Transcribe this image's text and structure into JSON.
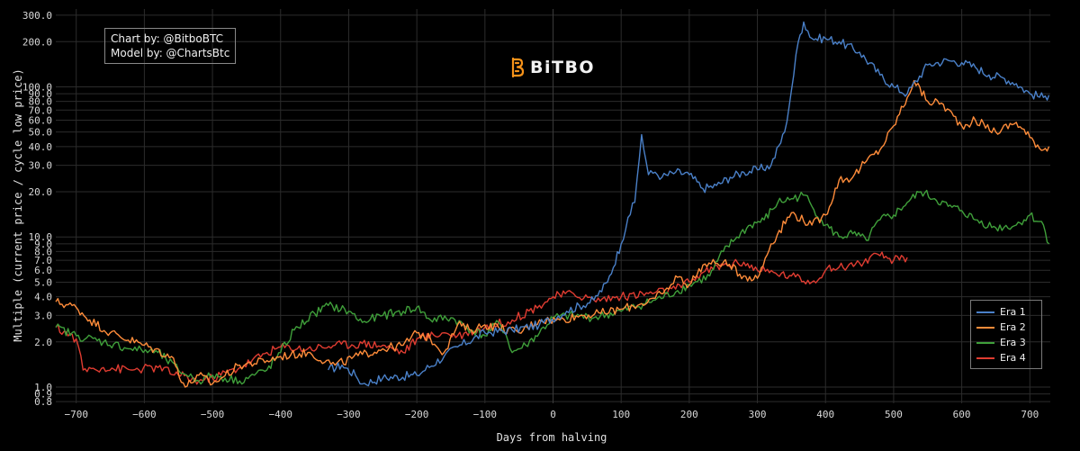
{
  "credits": {
    "chart_by": "Chart by: @BitboBTC",
    "model_by": "Model by: @ChartsBtc"
  },
  "logo": {
    "text": "BiTBO",
    "icon": "bitbo-logo-icon",
    "color": "#f7931a"
  },
  "chart_data": {
    "type": "line",
    "xlabel": "Days from halving",
    "ylabel": "Multiple (current price / cycle low price)",
    "xlim": [
      -730,
      730
    ],
    "ylim": [
      0.78,
      330
    ],
    "y_scale": "log",
    "grid": true,
    "legend_position": "bottom-right",
    "x_ticks": [
      -700,
      -600,
      -500,
      -400,
      -300,
      -200,
      -100,
      0,
      100,
      200,
      300,
      400,
      500,
      600,
      700
    ],
    "x_tick_labels": [
      "−700",
      "−600",
      "−500",
      "−400",
      "−300",
      "−200",
      "−100",
      "0",
      "100",
      "200",
      "300",
      "400",
      "500",
      "600",
      "700"
    ],
    "y_ticks": [
      0.8,
      0.9,
      1,
      2,
      3,
      4,
      5,
      6,
      7,
      8,
      9,
      10,
      20,
      30,
      40,
      50,
      60,
      70,
      80,
      90,
      100,
      200,
      300
    ],
    "y_tick_labels": [
      "0.8",
      "0.9",
      "1.0",
      "2.0",
      "3.0",
      "4.0",
      "5.0",
      "6.0",
      "7.0",
      "8.0",
      "9.0",
      "10.0",
      "20.0",
      "30.0",
      "40.0",
      "50.0",
      "60.0",
      "70.0",
      "80.0",
      "90.0",
      "100.0",
      "200.0",
      "300.0"
    ],
    "series": [
      {
        "name": "Era 1",
        "color": "#4a80c8",
        "x": [
          -330,
          -310,
          -290,
          -280,
          -250,
          -200,
          -160,
          -140,
          -100,
          -60,
          -20,
          20,
          60,
          80,
          100,
          110,
          120,
          130,
          140,
          150,
          160,
          180,
          200,
          220,
          240,
          260,
          280,
          300,
          320,
          340,
          350,
          360,
          368,
          380,
          400,
          420,
          450,
          480,
          500,
          520,
          550,
          580,
          600,
          620,
          640,
          660,
          680,
          700,
          720,
          728
        ],
        "y": [
          1.3,
          1.4,
          1.2,
          1.05,
          1.15,
          1.2,
          1.6,
          1.85,
          2.3,
          2.4,
          2.6,
          3.2,
          3.8,
          5.0,
          9.0,
          13.5,
          17.0,
          48.0,
          26.0,
          27.0,
          25.0,
          27.0,
          26.0,
          21.0,
          22.0,
          25.0,
          27.0,
          28.0,
          30.0,
          50.0,
          95.0,
          200.0,
          270.0,
          210.0,
          210.0,
          200.0,
          170.0,
          120.0,
          100.0,
          90.0,
          140.0,
          150.0,
          145.0,
          135.0,
          120.0,
          115.0,
          105.0,
          90.0,
          85.0,
          88.0
        ]
      },
      {
        "name": "Era 2",
        "color": "#ff8c3a",
        "x": [
          -730,
          -700,
          -680,
          -650,
          -600,
          -560,
          -540,
          -520,
          -500,
          -460,
          -420,
          -400,
          -360,
          -320,
          -280,
          -250,
          -220,
          -200,
          -180,
          -160,
          -140,
          -120,
          -100,
          -80,
          -50,
          -20,
          10,
          40,
          70,
          100,
          130,
          150,
          170,
          180,
          200,
          220,
          250,
          280,
          300,
          320,
          350,
          380,
          400,
          420,
          440,
          460,
          480,
          500,
          520,
          530,
          550,
          570,
          600,
          620,
          650,
          680,
          700,
          720,
          728
        ],
        "y": [
          3.7,
          3.4,
          2.8,
          2.3,
          1.9,
          1.6,
          1.0,
          1.2,
          1.05,
          1.4,
          1.5,
          1.6,
          1.7,
          1.4,
          1.65,
          1.8,
          1.9,
          2.3,
          2.1,
          1.7,
          2.6,
          2.4,
          2.6,
          2.5,
          2.3,
          2.8,
          2.8,
          3.0,
          3.1,
          3.3,
          3.6,
          3.9,
          4.5,
          5.5,
          4.8,
          6.5,
          6.8,
          5.5,
          5.3,
          9.0,
          14.5,
          12.0,
          14.0,
          24.0,
          25.0,
          32.0,
          38.0,
          55.0,
          85.0,
          110.0,
          80.0,
          78.0,
          55.0,
          60.0,
          50.0,
          58.0,
          46.0,
          38.0,
          40.0
        ]
      },
      {
        "name": "Era 3",
        "color": "#3f9f3a",
        "x": [
          -730,
          -700,
          -660,
          -620,
          -580,
          -550,
          -520,
          -500,
          -460,
          -420,
          -400,
          -380,
          -350,
          -330,
          -300,
          -280,
          -250,
          -220,
          -200,
          -180,
          -150,
          -120,
          -100,
          -80,
          -70,
          -60,
          -40,
          -20,
          0,
          30,
          60,
          100,
          150,
          180,
          200,
          230,
          250,
          270,
          290,
          310,
          330,
          350,
          370,
          380,
          400,
          420,
          440,
          460,
          480,
          500,
          520,
          540,
          560,
          580,
          600,
          620,
          650,
          680,
          700,
          720,
          728
        ],
        "y": [
          2.5,
          2.2,
          2.0,
          1.8,
          1.7,
          1.3,
          1.1,
          1.2,
          1.1,
          1.3,
          1.7,
          2.4,
          3.1,
          3.5,
          3.2,
          2.7,
          3.0,
          3.2,
          3.4,
          2.8,
          2.9,
          2.4,
          2.2,
          2.7,
          2.3,
          1.7,
          1.9,
          2.3,
          2.9,
          3.0,
          2.9,
          3.2,
          3.8,
          4.3,
          4.8,
          5.5,
          8.0,
          10.0,
          12.0,
          13.0,
          17.0,
          18.0,
          19.0,
          16.0,
          12.0,
          10.0,
          10.5,
          9.5,
          13.0,
          14.0,
          17.0,
          20.0,
          18.0,
          16.0,
          15.0,
          13.0,
          11.5,
          12.0,
          14.0,
          12.0,
          9.0
        ]
      },
      {
        "name": "Era 4",
        "color": "#e03c31",
        "x": [
          -730,
          -700,
          -690,
          -660,
          -620,
          -580,
          -550,
          -520,
          -500,
          -460,
          -420,
          -400,
          -360,
          -320,
          -280,
          -250,
          -220,
          -200,
          -160,
          -140,
          -100,
          -60,
          -20,
          0,
          30,
          60,
          100,
          140,
          180,
          200,
          220,
          250,
          280,
          300,
          350,
          380,
          400,
          420,
          450,
          480,
          500,
          520
        ],
        "y": [
          2.5,
          2.1,
          1.3,
          1.35,
          1.3,
          1.35,
          1.2,
          1.1,
          1.15,
          1.35,
          1.7,
          1.85,
          1.8,
          1.9,
          1.95,
          1.9,
          1.7,
          2.1,
          2.3,
          2.2,
          2.5,
          2.8,
          3.5,
          4.0,
          4.2,
          3.8,
          4.0,
          4.2,
          4.5,
          5.0,
          5.8,
          6.5,
          6.8,
          6.0,
          5.5,
          5.0,
          6.0,
          6.3,
          6.7,
          7.5,
          7.0,
          7.3
        ]
      }
    ]
  }
}
